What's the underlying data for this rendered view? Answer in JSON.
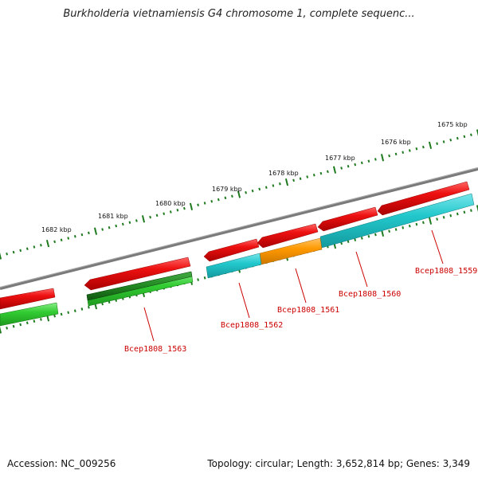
{
  "title": "Burkholderia vietnamiensis G4 chromosome 1, complete sequenc...",
  "footer": {
    "accession": "Accession: NC_009256",
    "summary": "Topology: circular; Length: 3,652,814 bp; Genes: 3,349"
  },
  "ruler_labels": [
    "1675 kbp",
    "1676 kbp",
    "1677 kbp",
    "1678 kbp",
    "1679 kbp",
    "1680 kbp",
    "1681 kbp",
    "1682 kbp"
  ],
  "gene_labels": [
    "Bcep1808_1559",
    "Bcep1808_1560",
    "Bcep1808_1561",
    "Bcep1808_1562",
    "Bcep1808_1563"
  ],
  "colors": {
    "backbone": "#808080",
    "ruler": "#1e7a1e",
    "cds_forward": "#ee1111",
    "cyan_feature": "#22c8cc",
    "orange_feature": "#ff9900",
    "green_feature": "#33cc33",
    "dark_green_feature": "#228822",
    "label": "#cc0000"
  }
}
